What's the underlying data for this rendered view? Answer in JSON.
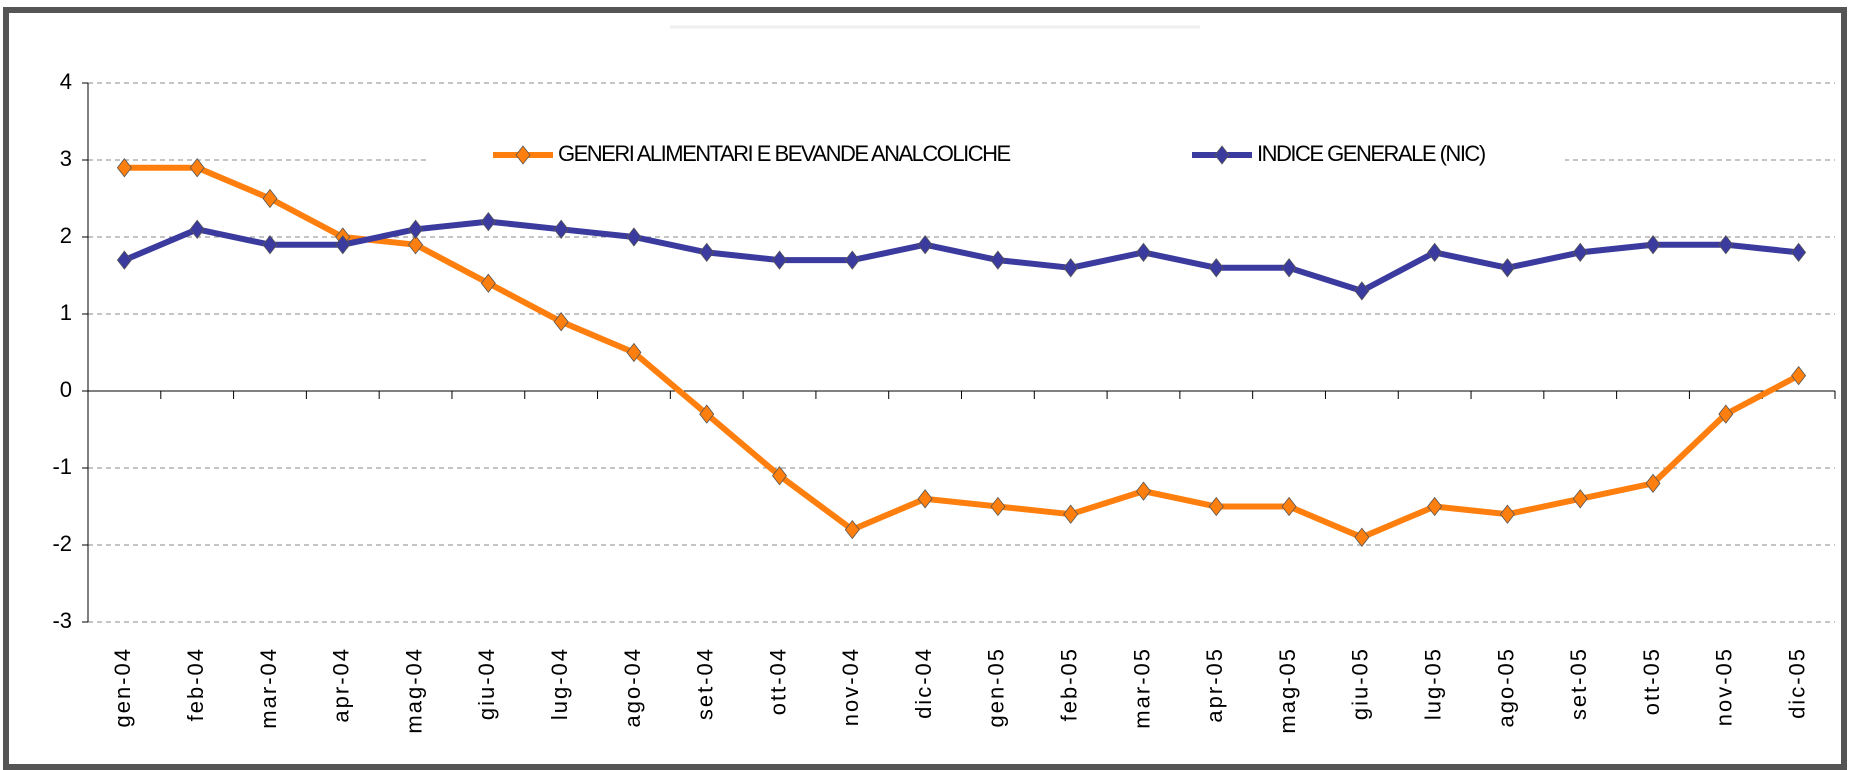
{
  "chart_data": {
    "type": "line",
    "categories": [
      "gen-04",
      "feb-04",
      "mar-04",
      "apr-04",
      "mag-04",
      "giu-04",
      "lug-04",
      "ago-04",
      "set-04",
      "ott-04",
      "nov-04",
      "dic-04",
      "gen-05",
      "feb-05",
      "mar-05",
      "apr-05",
      "mag-05",
      "giu-05",
      "lug-05",
      "ago-05",
      "set-05",
      "ott-05",
      "nov-05",
      "dic-05"
    ],
    "series": [
      {
        "name": "GENERI ALIMENTARI E BEVANDE ANALCOLICHE",
        "color": "#ff7f0e",
        "values": [
          2.9,
          2.9,
          2.5,
          2.0,
          1.9,
          1.4,
          0.9,
          0.5,
          -0.3,
          -1.1,
          -1.8,
          -1.4,
          -1.5,
          -1.6,
          -1.3,
          -1.5,
          -1.5,
          -1.9,
          -1.5,
          -1.6,
          -1.4,
          -1.2,
          -0.3,
          0.2
        ]
      },
      {
        "name": "INDICE GENERALE (NIC)",
        "color": "#3b3a9e",
        "values": [
          1.7,
          2.1,
          1.9,
          1.9,
          2.1,
          2.2,
          2.1,
          2.0,
          1.8,
          1.7,
          1.7,
          1.9,
          1.7,
          1.6,
          1.8,
          1.6,
          1.6,
          1.3,
          1.8,
          1.6,
          1.8,
          1.9,
          1.9,
          1.8
        ]
      }
    ],
    "ylim": [
      -3,
      4
    ],
    "yticks": [
      -3,
      -2,
      -1,
      0,
      1,
      2,
      3,
      4
    ],
    "grid": true
  }
}
